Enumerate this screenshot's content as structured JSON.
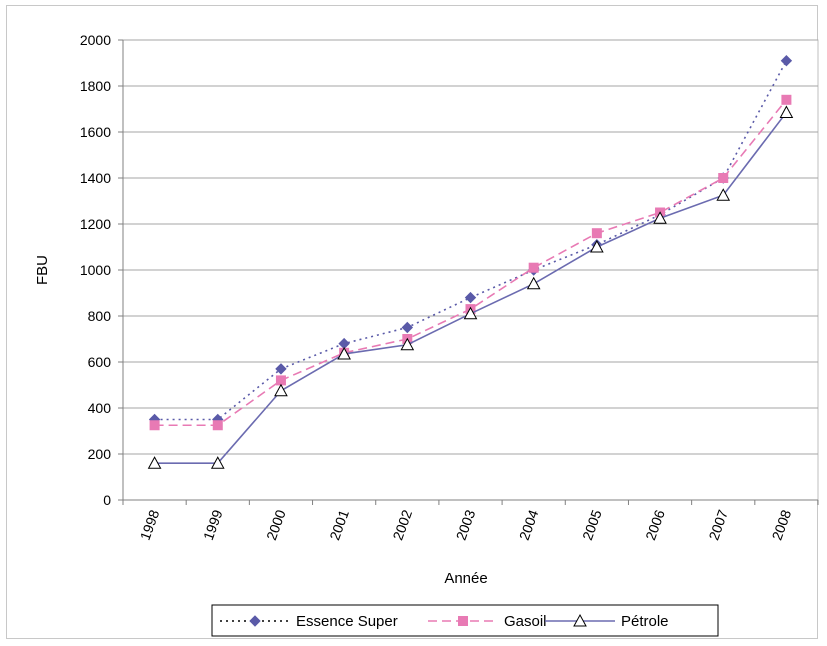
{
  "chart_data": {
    "type": "line",
    "xlabel": "Année",
    "ylabel": "FBU",
    "categories": [
      "1998",
      "1999",
      "2000",
      "2001",
      "2002",
      "2003",
      "2004",
      "2005",
      "2006",
      "2007",
      "2008"
    ],
    "ylim": [
      0,
      2000
    ],
    "yticks": [
      0,
      200,
      400,
      600,
      800,
      1000,
      1200,
      1400,
      1600,
      1800,
      2000
    ],
    "grid": true,
    "legend_position": "bottom",
    "series": [
      {
        "name": "Essence Super",
        "color": "#5a5aa8",
        "line_style": "dotted",
        "marker": "diamond",
        "values": [
          350,
          350,
          570,
          680,
          750,
          880,
          1000,
          1110,
          1240,
          1400,
          1910
        ]
      },
      {
        "name": "Gasoil",
        "color": "#e87ab4",
        "line_style": "dashed",
        "marker": "square",
        "values": [
          325,
          325,
          520,
          640,
          700,
          830,
          1010,
          1160,
          1250,
          1400,
          1740
        ]
      },
      {
        "name": "Pétrole",
        "color": "#6b6bb0",
        "line_style": "solid",
        "marker": "triangle",
        "values": [
          160,
          160,
          475,
          635,
          675,
          810,
          940,
          1100,
          1225,
          1325,
          1685
        ]
      }
    ]
  }
}
